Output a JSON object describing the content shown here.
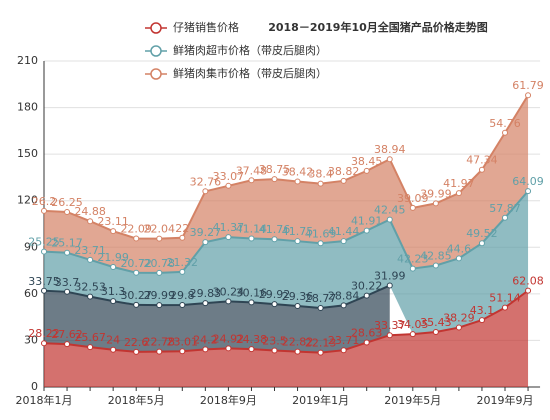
{
  "chart_data": {
    "type": "stacked_area",
    "title": "2018－2019年10月全国猪产品价格走势图",
    "categories": [
      "2018年1月",
      null,
      null,
      null,
      "2018年5月",
      null,
      null,
      null,
      "2018年9月",
      null,
      null,
      null,
      "2019年1月",
      null,
      null,
      null,
      "2019年5月",
      null,
      null,
      null,
      "2019年9月",
      null
    ],
    "ylim": [
      0,
      210
    ],
    "yticks": [
      0,
      30,
      60,
      90,
      120,
      150,
      180,
      210
    ],
    "grid": true,
    "series": [
      {
        "name": "仔猪销售价格",
        "color": "#c23531",
        "values": [
          28.22,
          27.62,
          25.67,
          24,
          22.6,
          22.78,
          23.01,
          24.2,
          24.92,
          24.38,
          23.5,
          22.82,
          22.13,
          23.71,
          28.63,
          33.37,
          34.05,
          35.43,
          38.29,
          43.1,
          51.14,
          62.08
        ]
      },
      {
        "color": "#2f4554",
        "values": [
          33.75,
          33.7,
          32.53,
          31.3,
          30.27,
          29.99,
          29.8,
          29.83,
          30.24,
          30.16,
          29.92,
          29.36,
          28.77,
          28.84,
          30.22,
          31.99,
          null,
          null,
          null,
          null,
          null,
          null
        ]
      },
      {
        "name": "鲜猪肉超市价格（带皮后腿肉）",
        "color": "#61a0a8",
        "values": [
          25.25,
          25.17,
          23.71,
          21.99,
          20.72,
          20.78,
          21.32,
          39.27,
          41.37,
          41.14,
          41.76,
          41.75,
          41.69,
          41.44,
          41.91,
          42.45,
          42.23,
          42.85,
          44.6,
          49.52,
          57.87,
          64.09
        ]
      },
      {
        "name": "鲜猪肉集市价格（带皮后腿肉）",
        "color": "#d48265",
        "values": [
          26.2,
          26.25,
          24.88,
          23.11,
          22.09,
          22.04,
          22,
          32.76,
          33.07,
          37.48,
          38.75,
          38.42,
          38.4,
          38.82,
          38.45,
          38.94,
          39.09,
          39.99,
          41.97,
          47.34,
          54.76,
          61.79
        ]
      }
    ]
  }
}
